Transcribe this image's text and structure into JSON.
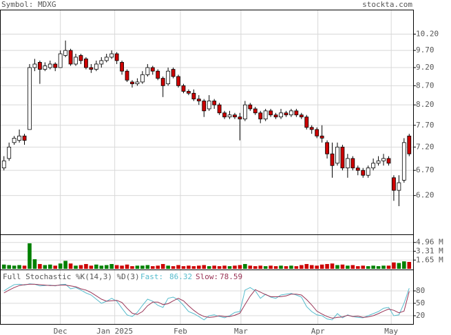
{
  "header": {
    "symbol": "Symbol: MDXG",
    "site": "stockta.com"
  },
  "chart_data": [
    {
      "type": "candlestick",
      "open": [
        6.75,
        6.95,
        7.3,
        7.35,
        7.45,
        7.6,
        9.2,
        9.35,
        9.15,
        9.2,
        9.3,
        9.2,
        9.55,
        9.7,
        9.3,
        9.55,
        9.45,
        9.2,
        9.15,
        9.3,
        9.4,
        9.5,
        9.6,
        9.35,
        9.1,
        8.8,
        8.75,
        8.8,
        9.0,
        9.2,
        9.1,
        8.9,
        8.75,
        9.15,
        8.95,
        8.7,
        8.55,
        8.5,
        8.35,
        8.3,
        8.1,
        8.3,
        8.2,
        8.0,
        7.9,
        7.95,
        7.9,
        7.85,
        8.2,
        8.1,
        8.0,
        7.85,
        8.05,
        7.95,
        7.9,
        8.0,
        7.95,
        8.05,
        7.95,
        7.9,
        7.65,
        7.6,
        7.45,
        7.3,
        7.05,
        6.85,
        7.2,
        6.75,
        6.95,
        6.75,
        6.7,
        6.6,
        6.75,
        6.85,
        6.9,
        6.95,
        6.55,
        6.3,
        6.5,
        7.45
      ],
      "high": [
        7.0,
        7.3,
        7.45,
        7.6,
        7.5,
        9.3,
        9.45,
        9.4,
        9.35,
        9.4,
        9.35,
        9.7,
        10.0,
        9.75,
        9.6,
        9.6,
        9.5,
        9.3,
        9.4,
        9.5,
        9.6,
        9.7,
        9.65,
        9.4,
        9.15,
        8.85,
        8.9,
        9.1,
        9.3,
        9.25,
        9.15,
        8.95,
        9.2,
        9.2,
        9.0,
        8.75,
        8.6,
        8.6,
        8.45,
        8.35,
        8.45,
        8.35,
        8.25,
        8.05,
        8.05,
        8.0,
        8.0,
        8.3,
        8.25,
        8.15,
        8.05,
        8.1,
        8.1,
        8.0,
        8.1,
        8.05,
        8.1,
        8.1,
        8.0,
        7.95,
        7.7,
        7.65,
        7.7,
        7.35,
        7.3,
        7.3,
        7.25,
        7.05,
        7.0,
        6.8,
        6.75,
        6.8,
        6.95,
        7.0,
        7.05,
        7.0,
        6.6,
        6.6,
        7.4,
        7.5
      ],
      "low": [
        6.7,
        6.9,
        7.25,
        7.3,
        7.25,
        7.6,
        9.1,
        8.75,
        9.1,
        9.15,
        9.1,
        9.2,
        9.5,
        9.25,
        9.25,
        9.3,
        9.15,
        9.05,
        9.1,
        9.2,
        9.35,
        9.45,
        9.3,
        9.0,
        8.8,
        8.65,
        8.7,
        8.75,
        8.95,
        9.0,
        8.85,
        8.4,
        8.7,
        8.9,
        8.65,
        8.5,
        8.45,
        8.3,
        8.2,
        7.9,
        8.05,
        8.1,
        7.95,
        7.85,
        7.85,
        7.85,
        7.35,
        7.8,
        8.05,
        7.95,
        7.75,
        7.8,
        7.9,
        7.85,
        7.85,
        7.9,
        7.9,
        7.9,
        7.85,
        7.6,
        7.5,
        7.4,
        7.3,
        6.95,
        6.55,
        6.8,
        6.7,
        6.55,
        6.7,
        6.6,
        6.55,
        6.55,
        6.7,
        6.8,
        6.8,
        6.8,
        6.1,
        6.0,
        6.45,
        7.0
      ],
      "close": [
        6.9,
        7.2,
        7.4,
        7.45,
        7.35,
        9.2,
        9.3,
        9.15,
        9.25,
        9.3,
        9.2,
        9.6,
        9.7,
        9.3,
        9.5,
        9.4,
        9.2,
        9.15,
        9.3,
        9.4,
        9.5,
        9.6,
        9.4,
        9.1,
        8.85,
        8.75,
        8.8,
        9.0,
        9.2,
        9.1,
        8.9,
        8.7,
        9.1,
        8.95,
        8.7,
        8.55,
        8.5,
        8.35,
        8.3,
        8.05,
        8.3,
        8.2,
        8.0,
        7.9,
        7.95,
        7.9,
        7.85,
        8.2,
        8.1,
        8.0,
        7.85,
        8.05,
        7.95,
        7.9,
        8.0,
        7.95,
        8.05,
        7.95,
        7.9,
        7.65,
        7.6,
        7.45,
        7.4,
        7.05,
        6.8,
        7.2,
        6.75,
        6.95,
        6.75,
        6.7,
        6.6,
        6.75,
        6.85,
        6.9,
        6.95,
        6.85,
        6.3,
        6.45,
        7.3,
        7.05
      ],
      "up_color": "#ffffff",
      "down_color": "#cc0000",
      "ylim": [
        5.5,
        11.0
      ],
      "log_scale": true,
      "yticks": [
        {
          "value": 10.2,
          "label": "10.20"
        },
        {
          "value": 9.7,
          "label": "9.70"
        },
        {
          "value": 9.2,
          "label": "9.20"
        },
        {
          "value": 8.7,
          "label": "8.70"
        },
        {
          "value": 8.2,
          "label": "8.20"
        },
        {
          "value": 7.7,
          "label": "7.70"
        },
        {
          "value": 7.2,
          "label": "7.20"
        },
        {
          "value": 6.7,
          "label": "6.70"
        },
        {
          "value": 6.2,
          "label": "6.20"
        }
      ],
      "xlim": [
        0,
        80
      ],
      "xticks": [
        {
          "value": 11.5,
          "label": "Dec"
        },
        {
          "value": 22.1,
          "label": "Jan 2025"
        },
        {
          "value": 34.9,
          "label": "Feb"
        },
        {
          "value": 46.7,
          "label": "Mar"
        },
        {
          "value": 61.7,
          "label": "Apr"
        },
        {
          "value": 76,
          "label": "May"
        }
      ],
      "grid": true
    },
    {
      "type": "bar",
      "values": [
        0.8,
        0.7,
        0.6,
        0.7,
        0.6,
        4.8,
        1.8,
        0.9,
        0.7,
        0.8,
        0.6,
        1.0,
        1.5,
        1.0,
        0.6,
        0.7,
        0.9,
        0.6,
        0.8,
        0.6,
        0.7,
        0.9,
        0.7,
        0.6,
        0.8,
        0.5,
        0.6,
        0.6,
        0.7,
        0.5,
        0.6,
        0.9,
        0.6,
        0.5,
        0.7,
        0.5,
        0.6,
        0.5,
        0.6,
        0.7,
        0.5,
        0.6,
        0.5,
        0.6,
        0.5,
        0.6,
        0.7,
        0.9,
        0.6,
        0.5,
        0.6,
        0.5,
        0.6,
        0.5,
        0.6,
        0.5,
        0.6,
        0.5,
        0.7,
        0.9,
        0.7,
        0.6,
        0.8,
        0.9,
        1.0,
        0.7,
        0.8,
        0.6,
        0.7,
        0.5,
        0.6,
        0.5,
        0.6,
        0.5,
        0.6,
        0.6,
        1.2,
        1.1,
        1.4,
        1.3
      ],
      "up_color": "#008000",
      "down_color": "#cc0000",
      "ylim": [
        0,
        6.35
      ],
      "yticks": [
        {
          "value": 4.96,
          "label": "4.96 M"
        },
        {
          "value": 3.31,
          "label": "3.31 M"
        },
        {
          "value": 1.65,
          "label": "1.65 M"
        }
      ]
    },
    {
      "type": "line",
      "title": "Full Stochastic %K(14,3) %D(3)",
      "series": [
        {
          "name": "Fast:",
          "color": "#55bbcc",
          "values": [
            80,
            88,
            95,
            96,
            94,
            97,
            96,
            92,
            93,
            94,
            92,
            95,
            96,
            85,
            88,
            82,
            75,
            70,
            60,
            50,
            55,
            62,
            55,
            38,
            22,
            18,
            28,
            45,
            60,
            55,
            45,
            40,
            62,
            65,
            58,
            45,
            30,
            25,
            18,
            10,
            20,
            22,
            18,
            15,
            20,
            28,
            30,
            82,
            88,
            80,
            62,
            72,
            65,
            62,
            70,
            72,
            74,
            70,
            65,
            42,
            30,
            22,
            20,
            12,
            10,
            25,
            15,
            22,
            18,
            16,
            15,
            20,
            25,
            30,
            38,
            40,
            20,
            22,
            50,
            86.32
          ]
        },
        {
          "name": "Slow:",
          "color": "#993355",
          "values": [
            75,
            82,
            88,
            93,
            95,
            96,
            96,
            95,
            94,
            93,
            93,
            94,
            94,
            92,
            90,
            85,
            82,
            76,
            68,
            60,
            55,
            56,
            57,
            52,
            38,
            26,
            23,
            30,
            44,
            53,
            53,
            47,
            49,
            56,
            62,
            56,
            44,
            33,
            24,
            18,
            16,
            17,
            20,
            18,
            18,
            21,
            26,
            47,
            67,
            83,
            77,
            71,
            66,
            66,
            66,
            68,
            72,
            72,
            70,
            59,
            46,
            31,
            24,
            18,
            14,
            16,
            17,
            21,
            18,
            19,
            16,
            17,
            20,
            25,
            31,
            36,
            33,
            27,
            31,
            78.59
          ]
        }
      ],
      "ylim": [
        0,
        130
      ],
      "yticks": [
        80,
        50,
        20
      ]
    }
  ]
}
